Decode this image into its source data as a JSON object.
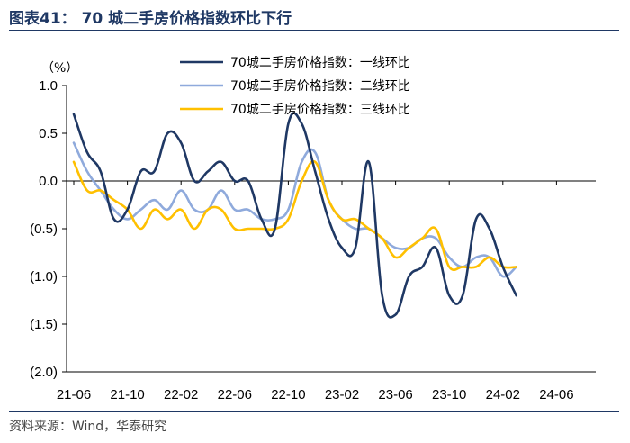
{
  "header": {
    "title": "图表41： 70 城二手房价格指数环比下行"
  },
  "footer": {
    "source": "资料来源：Wind，华泰研究"
  },
  "colors": {
    "tier1": "#1f3864",
    "tier2": "#8faadc",
    "tier3": "#ffc000",
    "rule": "#1f3864"
  },
  "chart_data": {
    "type": "line",
    "unit_label": "（%）",
    "ylim": [
      -2.0,
      1.0
    ],
    "y_ticks": [
      1.0,
      0.5,
      0.0,
      -0.5,
      -1.0,
      -1.5,
      -2.0
    ],
    "y_tick_labels": [
      "1.0",
      "0.5",
      "0.0",
      "(0.5)",
      "(1.0)",
      "(1.5)",
      "(2.0)"
    ],
    "x_tick_labels": [
      "21-06",
      "21-10",
      "22-02",
      "22-06",
      "22-10",
      "23-02",
      "23-06",
      "23-10",
      "24-02",
      "24-06"
    ],
    "x_start": "21-06",
    "x_end": "24-08",
    "grid": false,
    "legend_position": "top-center",
    "series": [
      {
        "name": "70城二手房价格指数：一线环比",
        "color": "#1f3864",
        "values": [
          0.7,
          0.3,
          0.1,
          -0.4,
          -0.3,
          0.1,
          0.1,
          0.5,
          0.4,
          0.0,
          0.1,
          0.2,
          0.0,
          0.0,
          -0.4,
          -0.5,
          0.6,
          0.6,
          0.1,
          -0.4,
          -0.7,
          -0.7,
          0.2,
          -1.2,
          -1.4,
          -1.0,
          -0.9,
          -0.7,
          -1.2,
          -1.2,
          -0.4,
          -0.5,
          -0.9,
          -1.2
        ]
      },
      {
        "name": "70城二手房价格指数：二线环比",
        "color": "#8faadc",
        "values": [
          0.4,
          0.1,
          -0.1,
          -0.3,
          -0.4,
          -0.3,
          -0.2,
          -0.3,
          -0.1,
          -0.3,
          -0.3,
          -0.1,
          -0.3,
          -0.3,
          -0.4,
          -0.4,
          -0.3,
          0.2,
          0.3,
          -0.2,
          -0.4,
          -0.5,
          -0.5,
          -0.6,
          -0.7,
          -0.7,
          -0.6,
          -0.6,
          -0.8,
          -0.9,
          -0.8,
          -0.8,
          -1.0,
          -0.9
        ]
      },
      {
        "name": "70城二手房价格指数：三线环比",
        "color": "#ffc000",
        "values": [
          0.2,
          -0.1,
          -0.1,
          -0.2,
          -0.3,
          -0.5,
          -0.3,
          -0.4,
          -0.3,
          -0.5,
          -0.3,
          -0.3,
          -0.5,
          -0.5,
          -0.5,
          -0.5,
          -0.4,
          0.0,
          0.2,
          -0.2,
          -0.4,
          -0.4,
          -0.5,
          -0.6,
          -0.8,
          -0.7,
          -0.6,
          -0.5,
          -0.9,
          -0.9,
          -0.9,
          -0.8,
          -0.9,
          -0.9
        ]
      }
    ]
  }
}
